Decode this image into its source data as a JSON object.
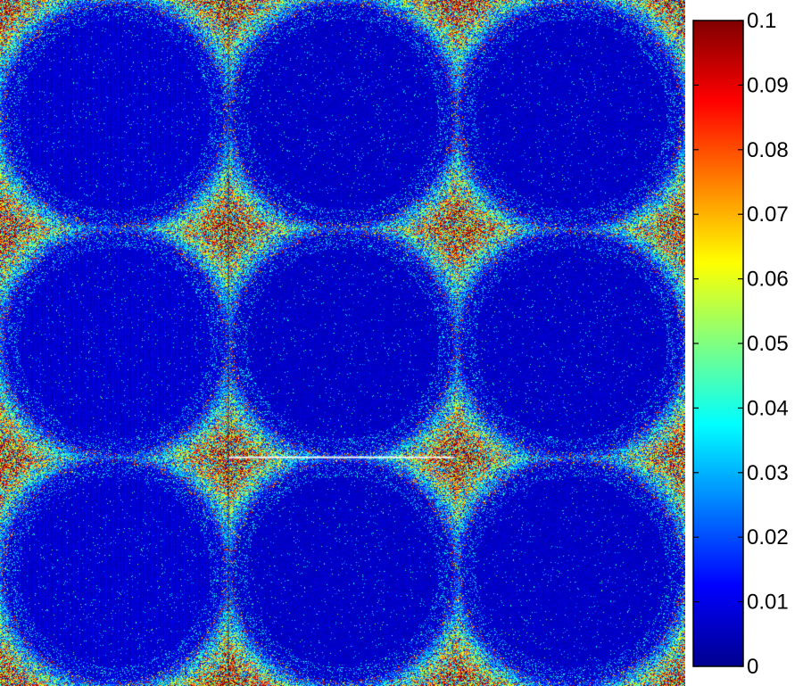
{
  "chart_data": {
    "type": "heatmap",
    "title": "",
    "xlabel": "",
    "ylabel": "",
    "colormap": "jet",
    "color_limits": [
      0,
      0.1
    ],
    "colorbar": {
      "position": "right",
      "ticks": [
        0,
        0.01,
        0.02,
        0.03,
        0.04,
        0.05,
        0.06,
        0.07,
        0.08,
        0.09,
        0.1
      ],
      "tick_labels": [
        "0",
        "0.01",
        "0.02",
        "0.03",
        "0.04",
        "0.05",
        "0.06",
        "0.07",
        "0.08",
        "0.09",
        "0.1"
      ]
    },
    "pattern": {
      "grid": [
        3,
        3
      ],
      "disc_value_range": [
        0,
        0.015
      ],
      "gap_value_range": [
        0.05,
        0.1
      ]
    }
  }
}
